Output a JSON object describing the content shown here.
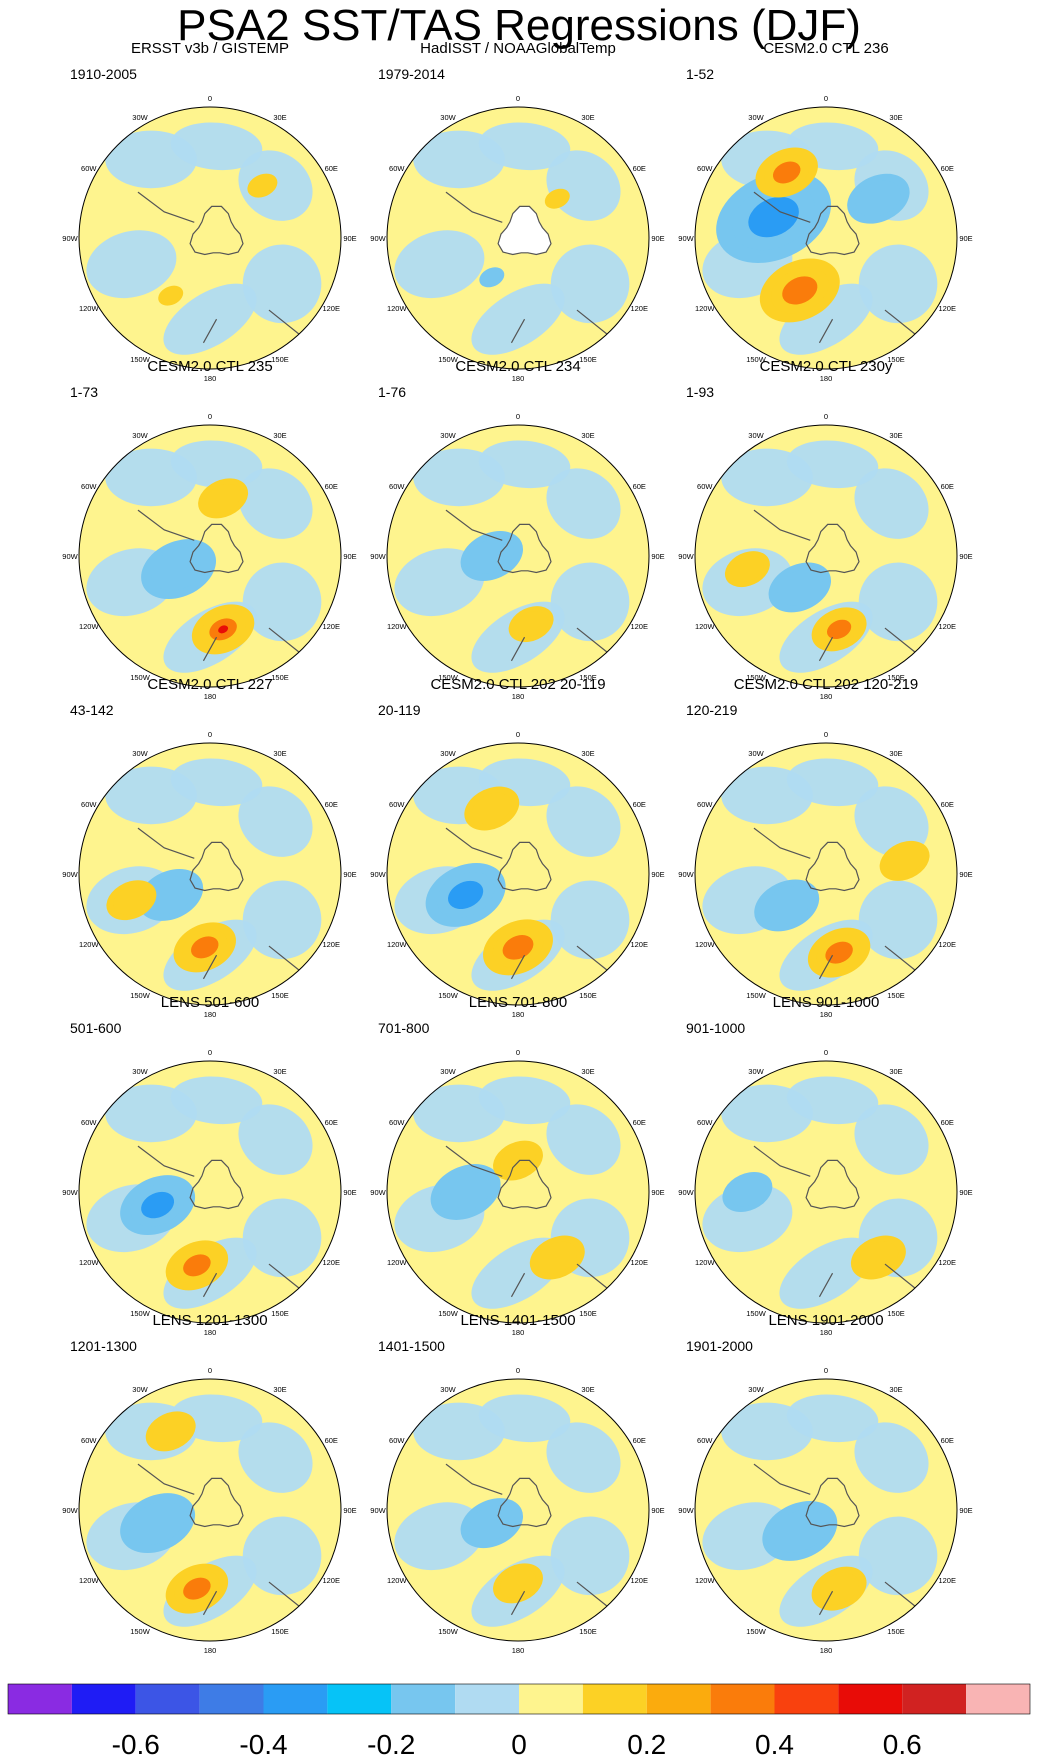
{
  "figure_title": "PSA2 SST/TAS Regressions (DJF)",
  "chart_data": {
    "type": "polar-stereographic contour maps (regression)",
    "season": "DJF",
    "longitude_labels": [
      "0",
      "30E",
      "60E",
      "90E",
      "120E",
      "150E",
      "180",
      "150W",
      "120W",
      "90W",
      "60W",
      "30W"
    ],
    "panels": [
      {
        "title": "ERSST v3b / GISTEMP",
        "period": "1910-2005",
        "pattern": "weak",
        "features": [
          [
            0.35,
            0.72,
            0.1,
            1
          ],
          [
            0.7,
            0.3,
            0.12,
            1
          ]
        ]
      },
      {
        "title": "HadISST / NOAAGlobalTemp",
        "period": "1979-2014",
        "pattern": "weak",
        "features": [
          [
            0.4,
            0.65,
            0.1,
            -1
          ],
          [
            0.65,
            0.35,
            0.1,
            1
          ]
        ]
      },
      {
        "title": "CESM2.0 CTL 236",
        "period": "1-52",
        "pattern": "strong",
        "features": [
          [
            0.3,
            0.42,
            0.46,
            -2
          ],
          [
            0.4,
            0.7,
            0.32,
            2
          ],
          [
            0.7,
            0.35,
            0.25,
            -1
          ],
          [
            0.35,
            0.25,
            0.25,
            2
          ]
        ]
      },
      {
        "title": "CESM2.0 CTL 235",
        "period": "1-73",
        "pattern": "moderate",
        "features": [
          [
            0.38,
            0.55,
            0.3,
            -1
          ],
          [
            0.55,
            0.78,
            0.25,
            3
          ],
          [
            0.55,
            0.28,
            0.2,
            1
          ]
        ]
      },
      {
        "title": "CESM2.0 CTL 234",
        "period": "1-76",
        "pattern": "weak",
        "features": [
          [
            0.4,
            0.5,
            0.25,
            -1
          ],
          [
            0.55,
            0.76,
            0.18,
            1
          ]
        ]
      },
      {
        "title": "CESM2.0 CTL 230y",
        "period": "1-93",
        "pattern": "moderate",
        "features": [
          [
            0.4,
            0.62,
            0.25,
            -1
          ],
          [
            0.55,
            0.78,
            0.22,
            2
          ],
          [
            0.2,
            0.55,
            0.18,
            1
          ]
        ]
      },
      {
        "title": "CESM2.0 CTL 227",
        "period": "43-142",
        "pattern": "moderate",
        "features": [
          [
            0.35,
            0.58,
            0.26,
            -1
          ],
          [
            0.48,
            0.78,
            0.25,
            2
          ],
          [
            0.2,
            0.6,
            0.2,
            1
          ]
        ]
      },
      {
        "title": "CESM2.0 CTL 202 20-119",
        "period": "20-119",
        "pattern": "strong",
        "features": [
          [
            0.3,
            0.58,
            0.32,
            -2
          ],
          [
            0.5,
            0.78,
            0.28,
            2
          ],
          [
            0.4,
            0.25,
            0.22,
            1
          ]
        ]
      },
      {
        "title": "CESM2.0 CTL 202 120-219",
        "period": "120-219",
        "pattern": "moderate",
        "features": [
          [
            0.35,
            0.62,
            0.26,
            -1
          ],
          [
            0.55,
            0.8,
            0.25,
            2
          ],
          [
            0.8,
            0.45,
            0.2,
            1
          ]
        ]
      },
      {
        "title": "LENS 501-600",
        "period": "501-600",
        "pattern": "moderate",
        "features": [
          [
            0.3,
            0.55,
            0.3,
            -2
          ],
          [
            0.45,
            0.78,
            0.25,
            2
          ]
        ]
      },
      {
        "title": "LENS 701-800",
        "period": "701-800",
        "pattern": "moderate",
        "features": [
          [
            0.3,
            0.5,
            0.28,
            -1
          ],
          [
            0.5,
            0.38,
            0.2,
            1
          ],
          [
            0.65,
            0.75,
            0.22,
            1
          ]
        ]
      },
      {
        "title": "LENS 901-1000",
        "period": "901-1000",
        "pattern": "weak",
        "features": [
          [
            0.2,
            0.5,
            0.2,
            -1
          ],
          [
            0.7,
            0.75,
            0.22,
            1
          ]
        ]
      },
      {
        "title": "LENS 1201-1300",
        "period": "1201-1300",
        "pattern": "moderate",
        "features": [
          [
            0.3,
            0.55,
            0.3,
            -1
          ],
          [
            0.45,
            0.8,
            0.25,
            2
          ],
          [
            0.35,
            0.2,
            0.2,
            1
          ]
        ]
      },
      {
        "title": "LENS 1401-1500",
        "period": "1401-1500",
        "pattern": "weak",
        "features": [
          [
            0.4,
            0.55,
            0.25,
            -1
          ],
          [
            0.5,
            0.78,
            0.2,
            1
          ]
        ]
      },
      {
        "title": "LENS 1901-2000",
        "period": "1901-2000",
        "pattern": "moderate",
        "features": [
          [
            0.4,
            0.58,
            0.3,
            -1
          ],
          [
            0.55,
            0.8,
            0.22,
            1
          ]
        ]
      }
    ],
    "colorbar": {
      "colors": [
        "#8a2be2",
        "#1f1cf5",
        "#3c55e6",
        "#3e7ce6",
        "#2a9cf4",
        "#06c3f7",
        "#77c6ef",
        "#b0dbf2",
        "#fef48e",
        "#fcd125",
        "#fbab0d",
        "#fa7c0b",
        "#f9410e",
        "#e80c07",
        "#d12221",
        "#f9b4b4"
      ],
      "tick_labels": [
        "-0.6",
        "-0.4",
        "-0.2",
        "0",
        "0.2",
        "0.4",
        "0.6"
      ],
      "tick_values": [
        -0.6,
        -0.4,
        -0.2,
        0,
        0.2,
        0.4,
        0.6
      ],
      "min": -0.8,
      "max": 0.8
    }
  }
}
